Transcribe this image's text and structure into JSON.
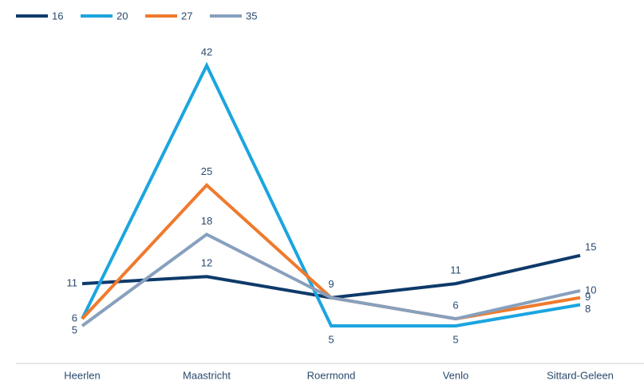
{
  "chart_data": {
    "type": "line",
    "categories": [
      "Heerlen",
      "Maastricht",
      "Roermond",
      "Venlo",
      "Sittard-Geleen"
    ],
    "series": [
      {
        "name": "16",
        "color": "#0e3a6a",
        "values": [
          11,
          12,
          9,
          11,
          15
        ]
      },
      {
        "name": "20",
        "color": "#1ba5df",
        "values": [
          6,
          42,
          5,
          5,
          8
        ]
      },
      {
        "name": "27",
        "color": "#ef7a2c",
        "values": [
          6,
          25,
          9,
          6,
          9
        ]
      },
      {
        "name": "35",
        "color": "#87a0bd",
        "values": [
          5,
          18,
          9,
          6,
          10
        ]
      }
    ]
  }
}
